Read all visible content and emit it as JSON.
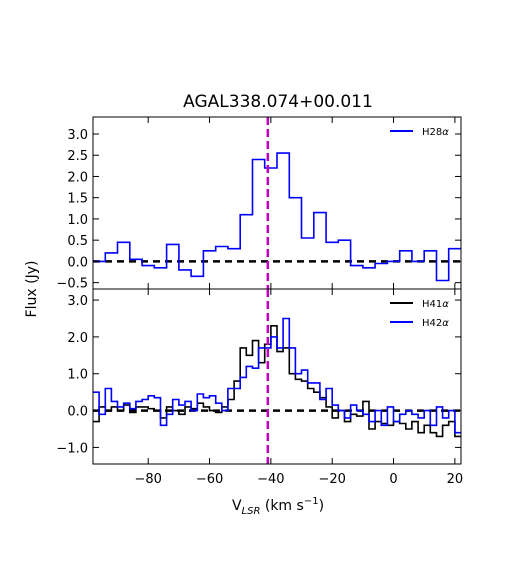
{
  "chart_data": {
    "title": "AGAL338.074+00.011",
    "ylabel": "Flux (Jy)",
    "xlabel": "V",
    "xlabel_sub": "LSR",
    "xlabel_units": " (km s",
    "xlabel_sup": "−1",
    "xlabel_end": ")",
    "xlim": [
      -98,
      22
    ],
    "x_ticks": [
      -80,
      -60,
      -40,
      -20,
      0,
      20
    ],
    "x_tick_labels": [
      "−80",
      "−60",
      "−40",
      "−20",
      "0",
      "20"
    ],
    "vline": {
      "x": -41,
      "color": "#bf00bf"
    },
    "panels": [
      {
        "type": "line",
        "ylim": [
          -0.65,
          3.4
        ],
        "y_ticks": [
          -0.5,
          0.0,
          0.5,
          1.0,
          1.5,
          2.0,
          2.5,
          3.0
        ],
        "y_tick_labels": [
          "−0.5",
          "0.0",
          "0.5",
          "1.0",
          "1.5",
          "2.0",
          "2.5",
          "3.0"
        ],
        "baseline": 0,
        "series": [
          {
            "name": "H28α",
            "legend_base": "H28",
            "legend_greek": "α",
            "color": "#0000ff",
            "step_width": 4,
            "x": [
              -98,
              -94,
              -90,
              -86,
              -82,
              -78,
              -74,
              -70,
              -66,
              -62,
              -58,
              -54,
              -50,
              -46,
              -42,
              -38,
              -34,
              -30,
              -26,
              -22,
              -18,
              -14,
              -10,
              -6,
              -2,
              2,
              6,
              10,
              14,
              18,
              22
            ],
            "y": [
              0.0,
              0.2,
              0.45,
              0.05,
              -0.1,
              -0.15,
              0.4,
              -0.2,
              -0.35,
              0.25,
              0.35,
              0.3,
              1.1,
              2.4,
              2.2,
              2.55,
              1.5,
              0.55,
              1.15,
              0.45,
              0.5,
              -0.1,
              -0.15,
              -0.05,
              0.0,
              0.25,
              0.0,
              0.25,
              -0.45,
              0.3,
              0.3
            ]
          }
        ]
      },
      {
        "type": "line",
        "ylim": [
          -1.45,
          3.3
        ],
        "y_ticks": [
          -1.0,
          0.0,
          1.0,
          2.0,
          3.0
        ],
        "y_tick_labels": [
          "−1.0",
          "0.0",
          "1.0",
          "2.0",
          "3.0"
        ],
        "baseline": 0,
        "series": [
          {
            "name": "H41α",
            "legend_base": "H41",
            "legend_greek": "α",
            "color": "#000000",
            "step_width": 2,
            "x": [
              -98,
              -96,
              -94,
              -92,
              -90,
              -88,
              -86,
              -84,
              -82,
              -80,
              -78,
              -76,
              -74,
              -72,
              -70,
              -68,
              -66,
              -64,
              -62,
              -60,
              -58,
              -56,
              -54,
              -52,
              -50,
              -48,
              -46,
              -44,
              -42,
              -40,
              -38,
              -36,
              -34,
              -32,
              -30,
              -28,
              -26,
              -24,
              -22,
              -20,
              -18,
              -16,
              -14,
              -12,
              -10,
              -8,
              -6,
              -4,
              -2,
              0,
              2,
              4,
              6,
              8,
              10,
              12,
              14,
              16,
              18,
              20
            ],
            "y": [
              -0.3,
              0.1,
              0.0,
              0.1,
              0.0,
              0.15,
              -0.05,
              0.1,
              0.1,
              0.05,
              0.0,
              -0.2,
              0.1,
              0.0,
              -0.1,
              0.1,
              0.05,
              0.2,
              0.1,
              0.0,
              -0.05,
              0.1,
              0.3,
              0.8,
              1.7,
              1.5,
              1.9,
              1.3,
              1.8,
              2.3,
              1.6,
              1.7,
              1.0,
              0.85,
              0.8,
              0.6,
              0.5,
              0.35,
              0.1,
              -0.2,
              0.0,
              -0.3,
              -0.1,
              -0.15,
              0.25,
              -0.5,
              -0.3,
              -0.35,
              -0.4,
              -0.3,
              -0.35,
              -0.5,
              -0.3,
              -0.6,
              -0.4,
              -0.6,
              -0.7,
              -0.4,
              -0.3,
              -0.7
            ]
          },
          {
            "name": "H42α",
            "legend_base": "H42",
            "legend_greek": "α",
            "color": "#0000ff",
            "step_width": 2,
            "x": [
              -98,
              -96,
              -94,
              -92,
              -90,
              -88,
              -86,
              -84,
              -82,
              -80,
              -78,
              -76,
              -74,
              -72,
              -70,
              -68,
              -66,
              -64,
              -62,
              -60,
              -58,
              -56,
              -54,
              -52,
              -50,
              -48,
              -46,
              -44,
              -42,
              -40,
              -38,
              -36,
              -34,
              -32,
              -30,
              -28,
              -26,
              -24,
              -22,
              -20,
              -18,
              -16,
              -14,
              -12,
              -10,
              -8,
              -6,
              -4,
              -2,
              0,
              2,
              4,
              6,
              8,
              10,
              12,
              14,
              16,
              18,
              20
            ],
            "y": [
              0.5,
              -0.1,
              0.6,
              0.25,
              0.1,
              0.2,
              0.05,
              0.25,
              0.3,
              0.4,
              0.35,
              -0.4,
              -0.1,
              0.3,
              0.15,
              0.25,
              0.0,
              0.45,
              0.35,
              0.4,
              0.2,
              0.0,
              0.6,
              0.6,
              0.9,
              1.2,
              1.15,
              1.7,
              1.7,
              2.0,
              1.7,
              2.5,
              1.7,
              1.0,
              1.1,
              0.75,
              0.75,
              0.3,
              0.6,
              0.15,
              0.0,
              -0.2,
              0.15,
              0.0,
              -0.1,
              -0.3,
              0.0,
              -0.4,
              0.1,
              -0.3,
              -0.1,
              0.0,
              -0.1,
              -0.2,
              0.0,
              -0.4,
              0.1,
              -0.2,
              0.0,
              -0.6
            ]
          }
        ]
      }
    ]
  }
}
